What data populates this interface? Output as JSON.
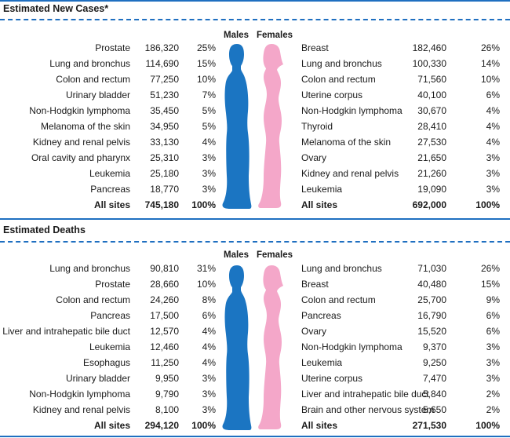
{
  "sections": [
    {
      "title": "Estimated New Cases*",
      "male_header": "Males",
      "female_header": "Females",
      "males": [
        {
          "site": "Prostate",
          "count": "186,320",
          "pct": "25%"
        },
        {
          "site": "Lung and bronchus",
          "count": "114,690",
          "pct": "15%"
        },
        {
          "site": "Colon and rectum",
          "count": "77,250",
          "pct": "10%"
        },
        {
          "site": "Urinary bladder",
          "count": "51,230",
          "pct": "7%"
        },
        {
          "site": "Non-Hodgkin lymphoma",
          "count": "35,450",
          "pct": "5%"
        },
        {
          "site": "Melanoma of the skin",
          "count": "34,950",
          "pct": "5%"
        },
        {
          "site": "Kidney and renal pelvis",
          "count": "33,130",
          "pct": "4%"
        },
        {
          "site": "Oral cavity and pharynx",
          "count": "25,310",
          "pct": "3%"
        },
        {
          "site": "Leukemia",
          "count": "25,180",
          "pct": "3%"
        },
        {
          "site": "Pancreas",
          "count": "18,770",
          "pct": "3%"
        }
      ],
      "males_total": {
        "site": "All sites",
        "count": "745,180",
        "pct": "100%"
      },
      "females": [
        {
          "site": "Breast",
          "count": "182,460",
          "pct": "26%"
        },
        {
          "site": "Lung and bronchus",
          "count": "100,330",
          "pct": "14%"
        },
        {
          "site": "Colon and rectum",
          "count": "71,560",
          "pct": "10%"
        },
        {
          "site": "Uterine corpus",
          "count": "40,100",
          "pct": "6%"
        },
        {
          "site": "Non-Hodgkin lymphoma",
          "count": "30,670",
          "pct": "4%"
        },
        {
          "site": "Thyroid",
          "count": "28,410",
          "pct": "4%"
        },
        {
          "site": "Melanoma of the skin",
          "count": "27,530",
          "pct": "4%"
        },
        {
          "site": "Ovary",
          "count": "21,650",
          "pct": "3%"
        },
        {
          "site": "Kidney and renal pelvis",
          "count": "21,260",
          "pct": "3%"
        },
        {
          "site": "Leukemia",
          "count": "19,090",
          "pct": "3%"
        }
      ],
      "females_total": {
        "site": "All sites",
        "count": "692,000",
        "pct": "100%"
      }
    },
    {
      "title": "Estimated Deaths",
      "male_header": "Males",
      "female_header": "Females",
      "males": [
        {
          "site": "Lung and bronchus",
          "count": "90,810",
          "pct": "31%"
        },
        {
          "site": "Prostate",
          "count": "28,660",
          "pct": "10%"
        },
        {
          "site": "Colon and rectum",
          "count": "24,260",
          "pct": "8%"
        },
        {
          "site": "Pancreas",
          "count": "17,500",
          "pct": "6%"
        },
        {
          "site": "Liver and intrahepatic bile duct",
          "count": "12,570",
          "pct": "4%"
        },
        {
          "site": "Leukemia",
          "count": "12,460",
          "pct": "4%"
        },
        {
          "site": "Esophagus",
          "count": "11,250",
          "pct": "4%"
        },
        {
          "site": "Urinary bladder",
          "count": "9,950",
          "pct": "3%"
        },
        {
          "site": "Non-Hodgkin lymphoma",
          "count": "9,790",
          "pct": "3%"
        },
        {
          "site": "Kidney and renal pelvis",
          "count": "8,100",
          "pct": "3%"
        }
      ],
      "males_total": {
        "site": "All sites",
        "count": "294,120",
        "pct": "100%"
      },
      "females": [
        {
          "site": "Lung and bronchus",
          "count": "71,030",
          "pct": "26%"
        },
        {
          "site": "Breast",
          "count": "40,480",
          "pct": "15%"
        },
        {
          "site": "Colon and rectum",
          "count": "25,700",
          "pct": "9%"
        },
        {
          "site": "Pancreas",
          "count": "16,790",
          "pct": "6%"
        },
        {
          "site": "Ovary",
          "count": "15,520",
          "pct": "6%"
        },
        {
          "site": "Non-Hodgkin lymphoma",
          "count": "9,370",
          "pct": "3%"
        },
        {
          "site": "Leukemia",
          "count": "9,250",
          "pct": "3%"
        },
        {
          "site": "Uterine corpus",
          "count": "7,470",
          "pct": "3%"
        },
        {
          "site": "Liver and intrahepatic bile duct",
          "count": "5,840",
          "pct": "2%"
        },
        {
          "site": "Brain and other nervous system",
          "count": "5,650",
          "pct": "2%"
        }
      ],
      "females_total": {
        "site": "All sites",
        "count": "271,530",
        "pct": "100%"
      }
    }
  ],
  "colors": {
    "rule": "#1f6fc0",
    "male": "#1b75c2",
    "female": "#f4a7c9"
  }
}
